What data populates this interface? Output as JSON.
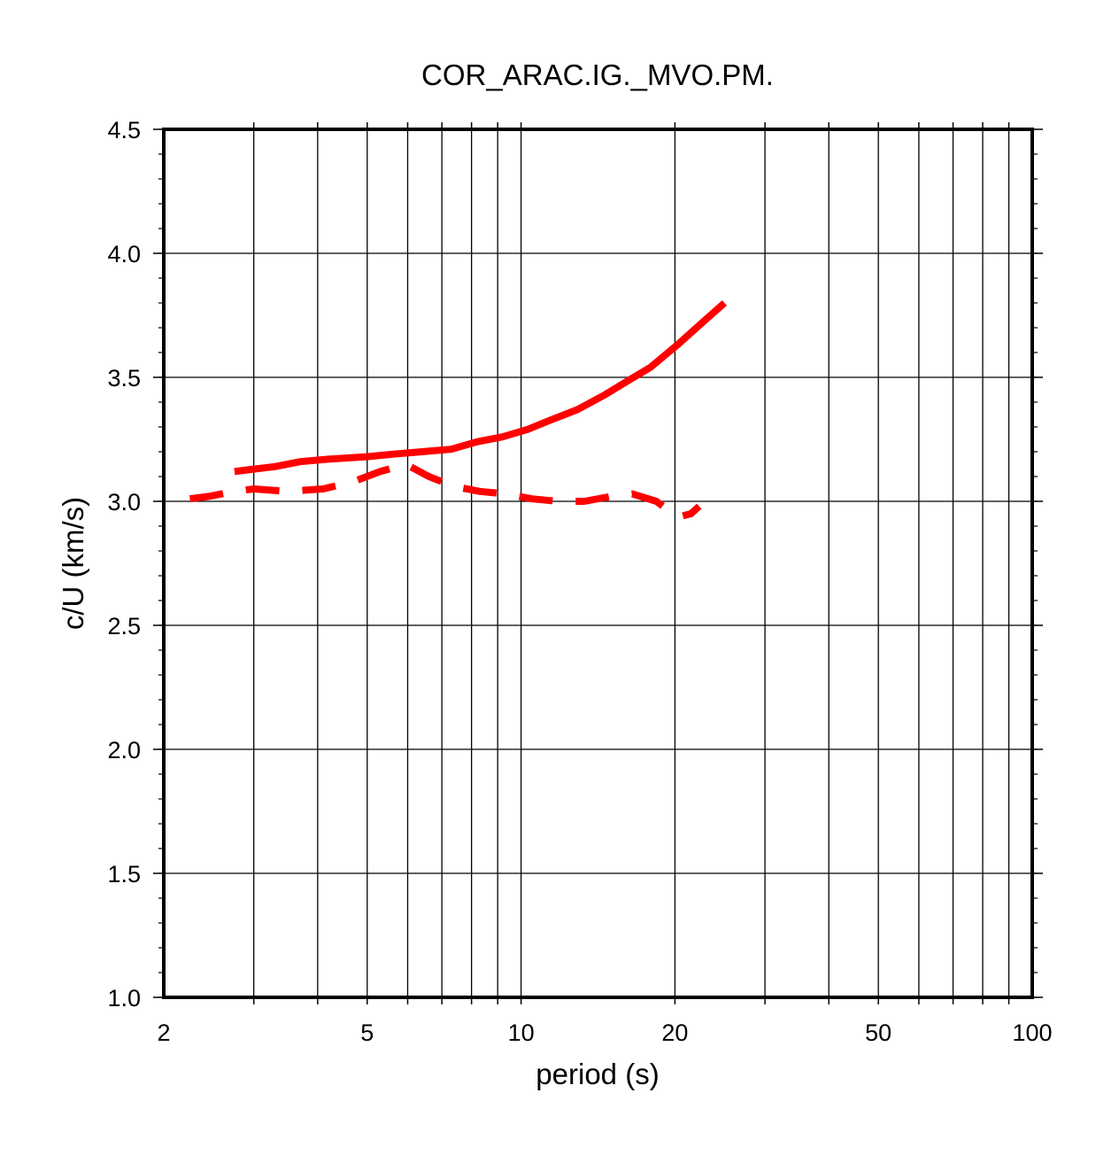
{
  "chart_data": {
    "type": "line",
    "title": "COR_ARAC.IG._MVO.PM.",
    "xlabel": "period (s)",
    "ylabel": "c/U (km/s)",
    "x_scale": "log",
    "xlim": [
      2,
      100
    ],
    "ylim": [
      1.0,
      4.5
    ],
    "x_ticks": [
      2,
      5,
      10,
      20,
      50,
      100
    ],
    "x_tick_labels": [
      "2",
      "5",
      "10",
      "20",
      "50",
      "100"
    ],
    "y_ticks": [
      1.0,
      1.5,
      2.0,
      2.5,
      3.0,
      3.5,
      4.0,
      4.5
    ],
    "y_tick_labels": [
      "1.0",
      "1.5",
      "2.0",
      "2.5",
      "3.0",
      "3.5",
      "4.0",
      "4.5"
    ],
    "grid": true,
    "series": [
      {
        "style": "solid",
        "color": "#ff0000",
        "x": [
          2.75,
          3.0,
          3.3,
          3.7,
          4.2,
          5.0,
          5.6,
          6.4,
          7.3,
          8.2,
          9.2,
          10.3,
          11.5,
          12.9,
          14.6,
          16.0,
          17.9,
          20.2,
          22.6,
          25.0
        ],
        "y": [
          3.12,
          3.13,
          3.14,
          3.16,
          3.17,
          3.18,
          3.19,
          3.2,
          3.21,
          3.24,
          3.26,
          3.29,
          3.33,
          3.37,
          3.43,
          3.48,
          3.54,
          3.63,
          3.72,
          3.8
        ]
      },
      {
        "style": "dashed",
        "color": "#ff0000",
        "x": [
          2.25,
          2.45,
          2.75,
          3.0,
          3.5,
          4.1,
          4.7,
          5.3,
          5.95,
          6.6,
          7.4,
          8.3,
          9.3,
          10.5,
          11.8,
          13.3,
          15.0,
          16.5,
          18.4,
          19.5,
          20.6,
          21.5,
          22.3
        ],
        "y": [
          3.01,
          3.02,
          3.04,
          3.05,
          3.04,
          3.05,
          3.08,
          3.12,
          3.15,
          3.1,
          3.06,
          3.04,
          3.03,
          3.01,
          3.0,
          3.0,
          3.02,
          3.03,
          3.0,
          2.96,
          2.94,
          2.95,
          2.98
        ]
      }
    ]
  }
}
